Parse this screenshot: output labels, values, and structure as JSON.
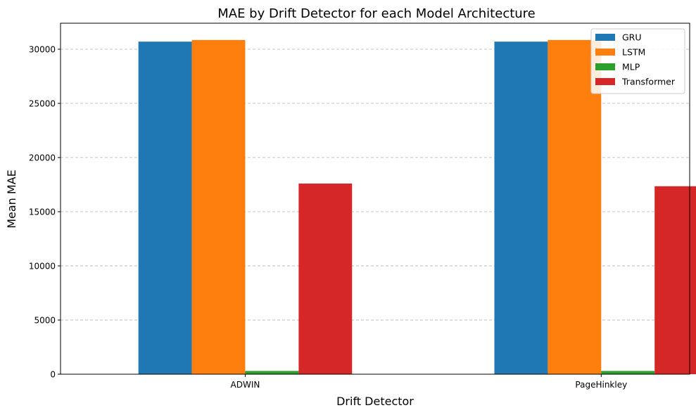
{
  "chart_data": {
    "type": "bar",
    "title": "MAE by Drift Detector for each Model Architecture",
    "xlabel": "Drift Detector",
    "ylabel": "Mean MAE",
    "categories": [
      "ADWIN",
      "PageHinkley"
    ],
    "series": [
      {
        "name": "GRU",
        "color": "#1f77b4",
        "values": [
          30700,
          30700
        ]
      },
      {
        "name": "LSTM",
        "color": "#ff7f0e",
        "values": [
          30850,
          30850
        ]
      },
      {
        "name": "MLP",
        "color": "#2ca02c",
        "values": [
          300,
          300
        ]
      },
      {
        "name": "Transformer",
        "color": "#d62728",
        "values": [
          17600,
          17350
        ]
      }
    ],
    "ylim": [
      0,
      32400
    ],
    "yticks": [
      0,
      5000,
      10000,
      15000,
      20000,
      25000,
      30000
    ],
    "grid": "y-dashed",
    "legend_position": "top-right"
  }
}
